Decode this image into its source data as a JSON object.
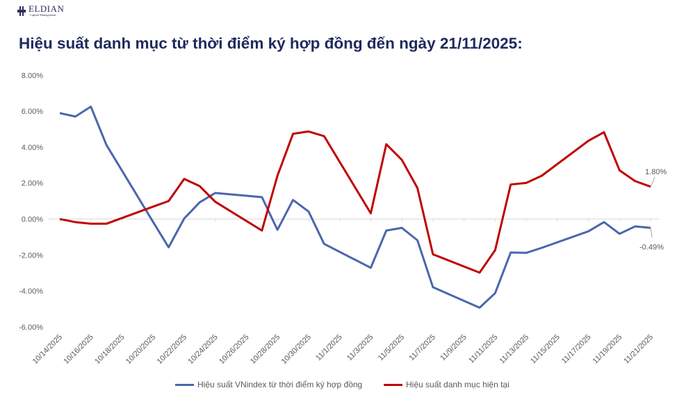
{
  "logo": {
    "name": "ELDIAN",
    "subtitle": "Capital Management"
  },
  "title": "Hiệu suất danh mục từ thời điểm ký hợp đồng đến ngày 21/11/2025:",
  "chart_data": {
    "type": "line",
    "title": "Hiệu suất danh mục từ thời điểm ký hợp đồng đến ngày 21/11/2025:",
    "xlabel": "",
    "ylabel": "",
    "ylim": [
      -6,
      8
    ],
    "y_ticks": [
      "8.00%",
      "6.00%",
      "4.00%",
      "2.00%",
      "0.00%",
      "-2.00%",
      "-4.00%",
      "-6.00%"
    ],
    "y_tick_values": [
      8,
      6,
      4,
      2,
      0,
      -2,
      -4,
      -6
    ],
    "x_ticks": [
      "10/14/2025",
      "10/16/2025",
      "10/18/2025",
      "10/20/2025",
      "10/22/2025",
      "10/24/2025",
      "10/26/2025",
      "10/28/2025",
      "10/30/2025",
      "11/1/2025",
      "11/3/2025",
      "11/5/2025",
      "11/7/2025",
      "11/9/2025",
      "11/11/2025",
      "11/13/2025",
      "11/15/2025",
      "11/17/2025",
      "11/19/2025",
      "11/21/2025"
    ],
    "x": [
      "2025-10-14",
      "2025-10-15",
      "2025-10-16",
      "2025-10-17",
      "2025-10-20",
      "2025-10-21",
      "2025-10-22",
      "2025-10-23",
      "2025-10-24",
      "2025-10-27",
      "2025-10-28",
      "2025-10-29",
      "2025-10-30",
      "2025-10-31",
      "2025-11-03",
      "2025-11-04",
      "2025-11-05",
      "2025-11-06",
      "2025-11-07",
      "2025-11-10",
      "2025-11-11",
      "2025-11-12",
      "2025-11-13",
      "2025-11-14",
      "2025-11-17",
      "2025-11-18",
      "2025-11-19",
      "2025-11-20",
      "2025-11-21"
    ],
    "xlim": [
      "2025-10-14",
      "2025-11-21"
    ],
    "grid": false,
    "legend_position": "bottom",
    "series": [
      {
        "name": "Hiệu suất VNindex từ thời điểm ký hợp đồng",
        "color": "#4a66ac",
        "end_label": "-0.49%",
        "values": [
          5.89,
          5.7,
          6.25,
          4.12,
          -0.16,
          -1.57,
          0.03,
          0.93,
          1.45,
          1.22,
          -0.6,
          1.06,
          0.42,
          -1.38,
          -2.71,
          -0.64,
          -0.49,
          -1.18,
          -3.79,
          -4.93,
          -4.12,
          -1.86,
          -1.88,
          -1.6,
          -0.68,
          -0.17,
          -0.82,
          -0.41,
          -0.49
        ]
      },
      {
        "name": "Hiệu suất danh mục hiện tại",
        "color": "#c00000",
        "end_label": "1.80%",
        "values": [
          0.0,
          -0.17,
          -0.26,
          -0.26,
          0.69,
          1.0,
          2.23,
          1.83,
          0.96,
          -0.64,
          2.41,
          4.74,
          4.87,
          4.61,
          0.32,
          4.16,
          3.29,
          1.73,
          -1.96,
          -2.98,
          -1.73,
          1.92,
          2.01,
          2.41,
          4.35,
          4.83,
          2.71,
          2.11,
          1.8
        ]
      }
    ]
  }
}
